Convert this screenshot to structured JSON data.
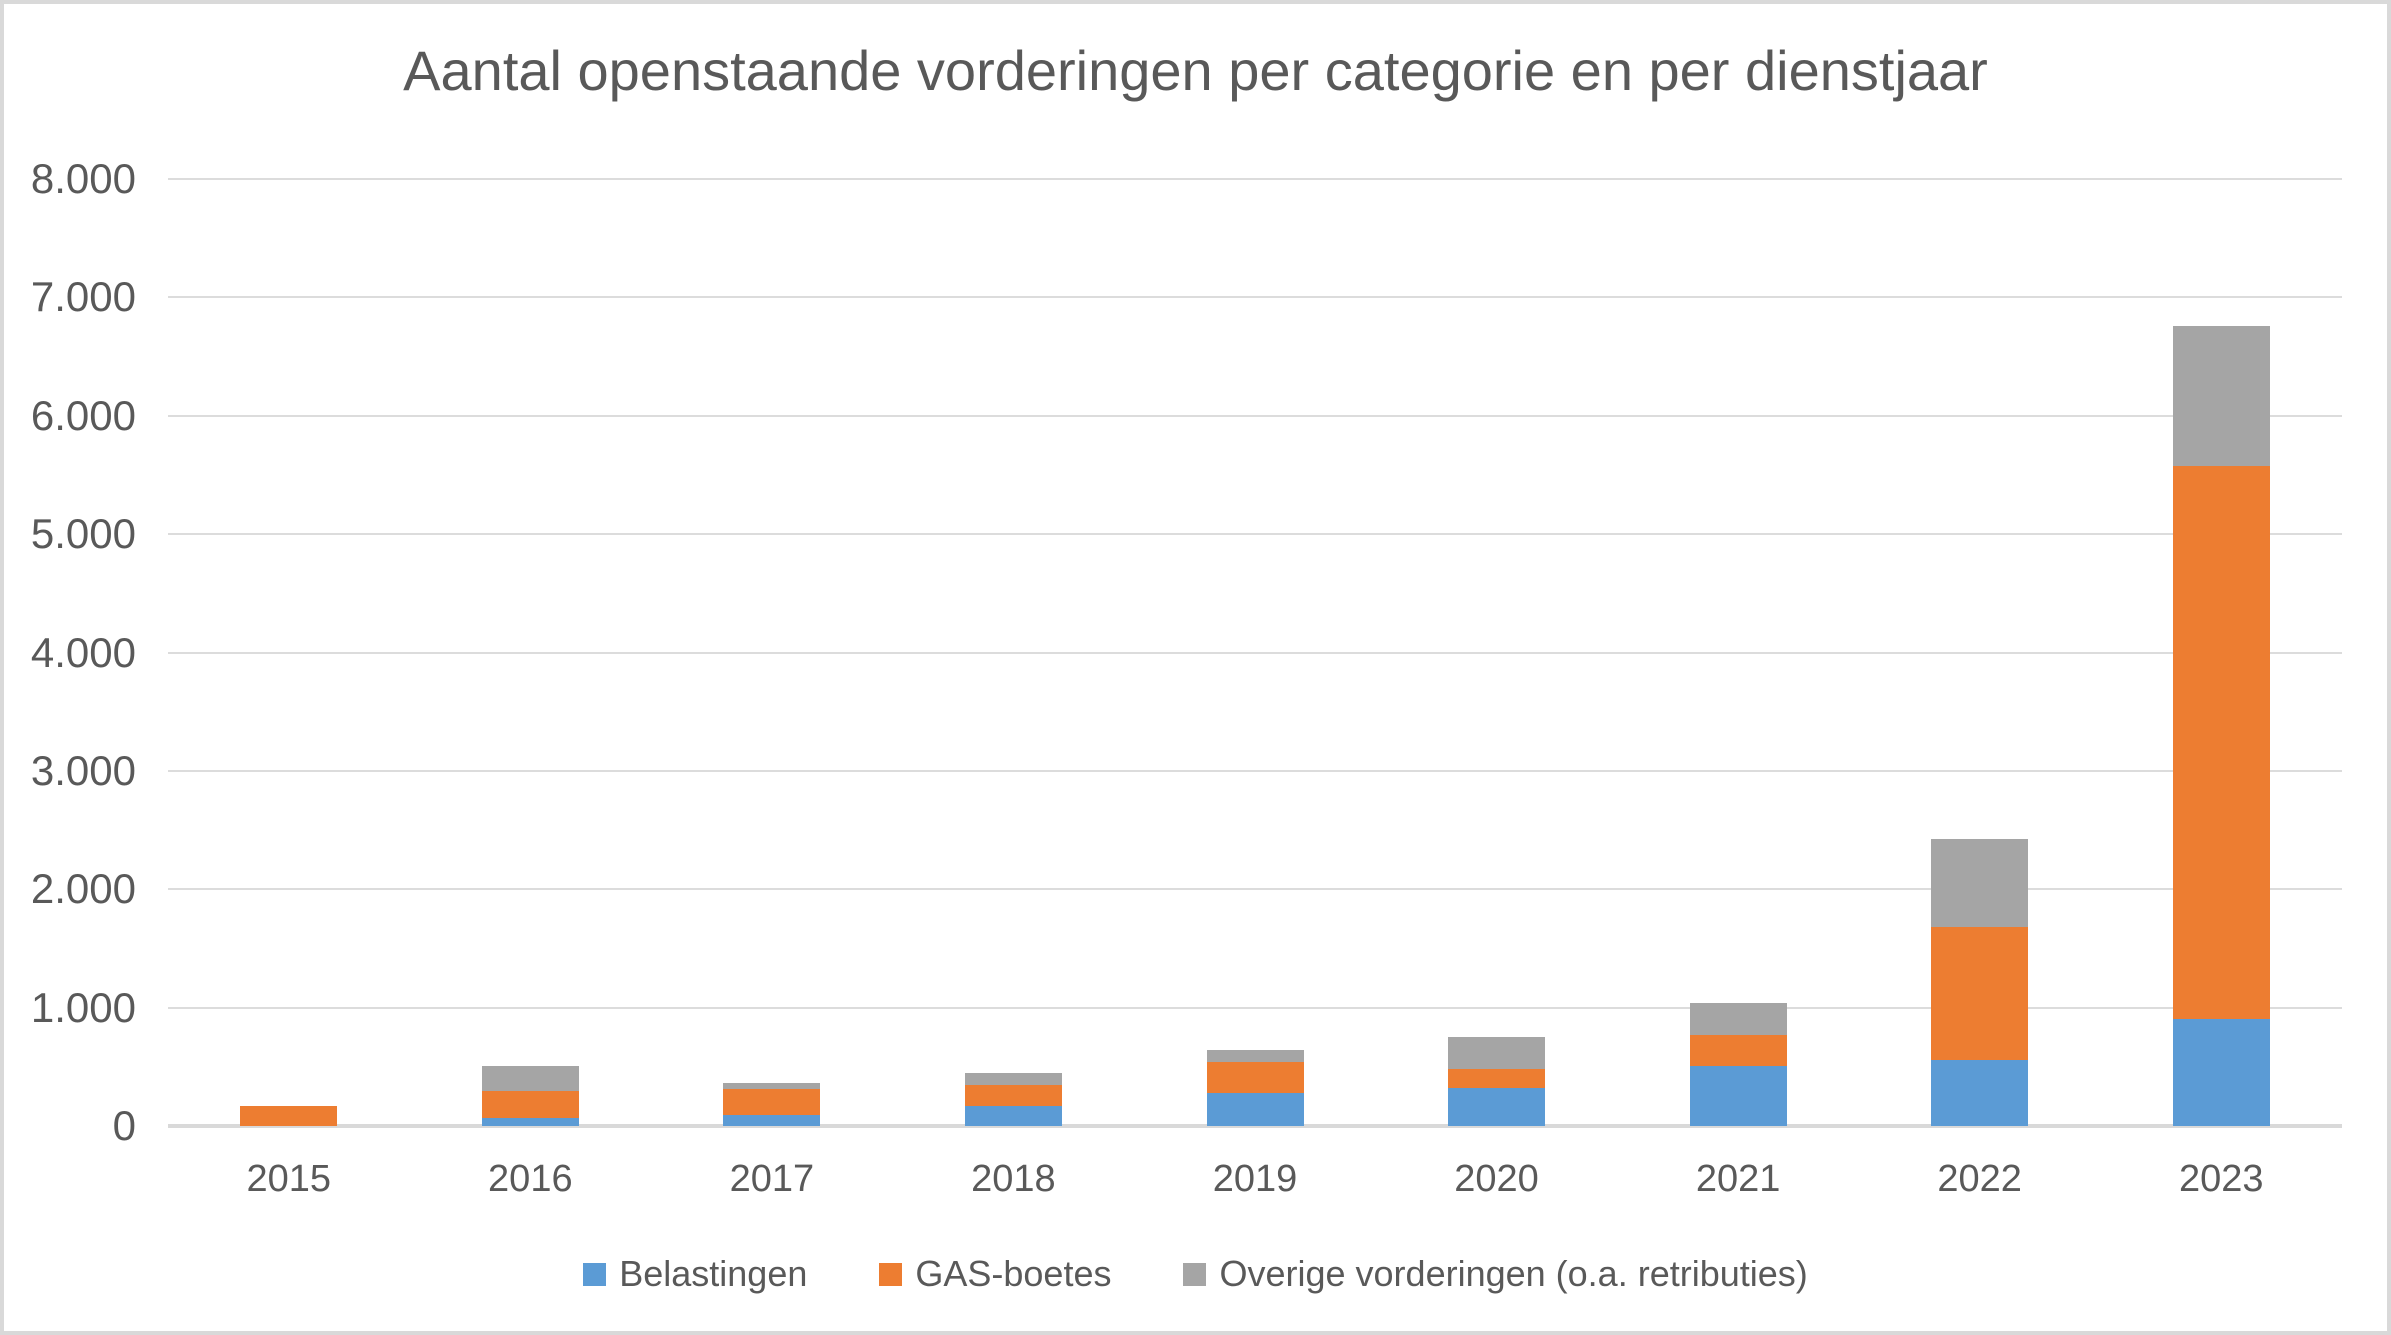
{
  "chart_data": {
    "type": "bar",
    "stacked": true,
    "title": "Aantal openstaande vorderingen per categorie en per dienstjaar",
    "categories": [
      "2015",
      "2016",
      "2017",
      "2018",
      "2019",
      "2020",
      "2021",
      "2022",
      "2023"
    ],
    "series": [
      {
        "name": "Belastingen",
        "color": "#5B9BD5",
        "values": [
          0,
          70,
          90,
          165,
          275,
          320,
          510,
          560,
          900
        ]
      },
      {
        "name": "GAS-boetes",
        "color": "#ED7D31",
        "values": [
          170,
          225,
          220,
          180,
          265,
          160,
          260,
          1125,
          4675
        ]
      },
      {
        "name": "Overige vorderingen (o.a. retributies)",
        "color": "#A5A5A5",
        "values": [
          0,
          215,
          55,
          105,
          100,
          270,
          270,
          740,
          1180
        ]
      }
    ],
    "xlabel": "",
    "ylabel": "",
    "ylim": [
      0,
      8000
    ],
    "ytick_interval": 1000,
    "ytick_labels": [
      "0",
      "1.000",
      "2.000",
      "3.000",
      "4.000",
      "5.000",
      "6.000",
      "7.000",
      "8.000"
    ],
    "grid": "horizontal",
    "gridline_color": "#D9D9D9",
    "text_color": "#595959",
    "legend_position": "bottom"
  }
}
